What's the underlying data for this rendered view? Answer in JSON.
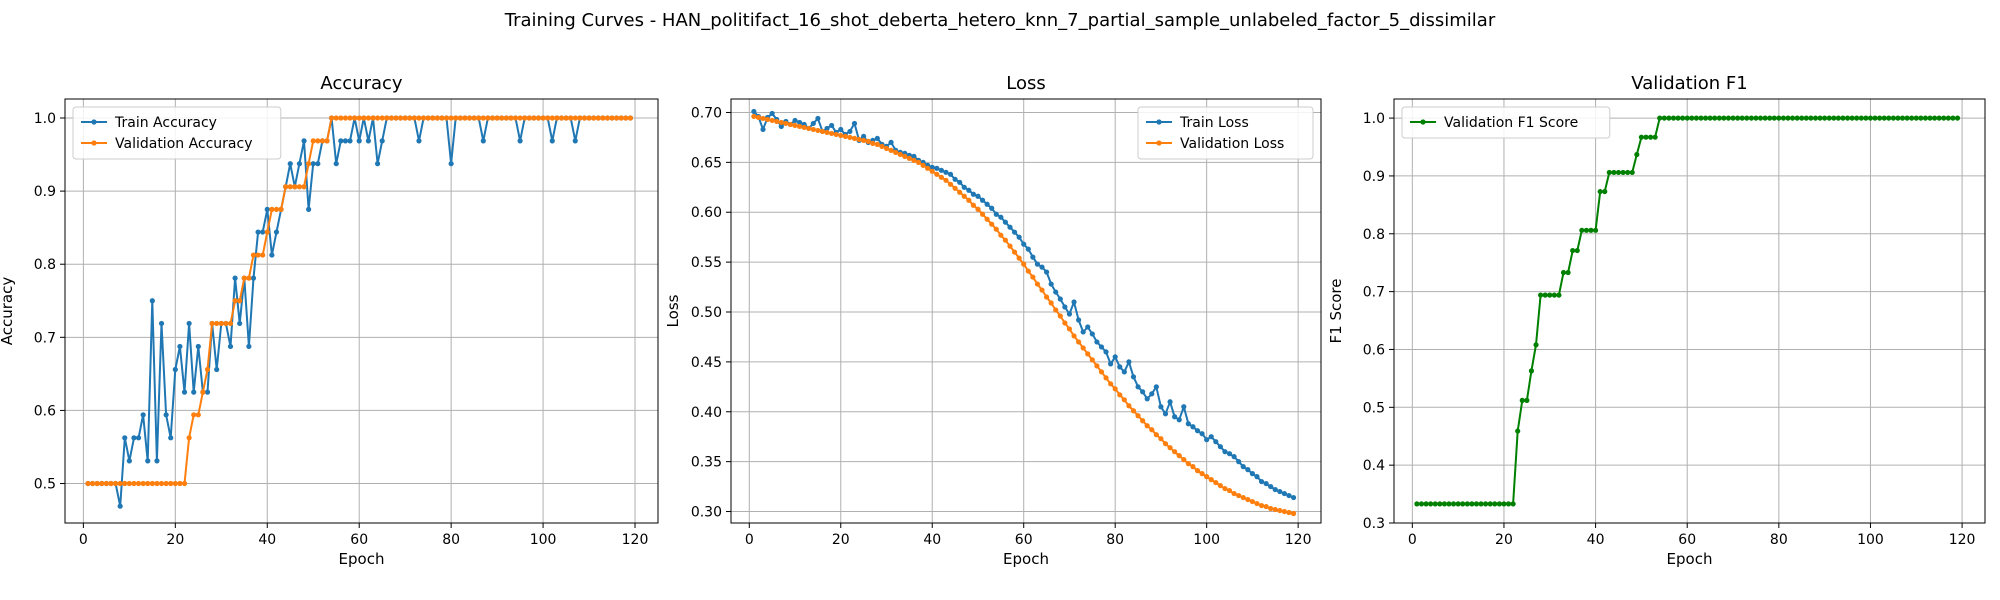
{
  "figure": {
    "suptitle": "Training Curves - HAN_politifact_16_shot_deberta_hetero_knn_7_partial_sample_unlabeled_factor_5_dissimilar"
  },
  "colors": {
    "train": "#1f77b4",
    "validation": "#ff7f0e",
    "f1": "#008000",
    "grid": "#b0b0b0"
  },
  "chart_data": [
    {
      "type": "line",
      "title": "Accuracy",
      "xlabel": "Epoch",
      "ylabel": "Accuracy",
      "xlim": [
        -4,
        125
      ],
      "ylim": [
        0.446,
        1.026
      ],
      "xticks": [
        0,
        20,
        40,
        60,
        80,
        100,
        120
      ],
      "yticks": [
        0.5,
        0.6,
        0.7,
        0.8,
        0.9,
        1.0
      ],
      "ytick_labels": [
        "0.5",
        "0.6",
        "0.7",
        "0.8",
        "0.9",
        "1.0"
      ],
      "grid": true,
      "legend_position": "top-left",
      "x": [
        1,
        2,
        3,
        4,
        5,
        6,
        7,
        8,
        9,
        10,
        11,
        12,
        13,
        14,
        15,
        16,
        17,
        18,
        19,
        20,
        21,
        22,
        23,
        24,
        25,
        26,
        27,
        28,
        29,
        30,
        31,
        32,
        33,
        34,
        35,
        36,
        37,
        38,
        39,
        40,
        41,
        42,
        43,
        44,
        45,
        46,
        47,
        48,
        49,
        50,
        51,
        52,
        53,
        54,
        55,
        56,
        57,
        58,
        59,
        60,
        61,
        62,
        63,
        64,
        65,
        66,
        67,
        68,
        69,
        70,
        71,
        72,
        73,
        74,
        75,
        76,
        77,
        78,
        79,
        80,
        81,
        82,
        83,
        84,
        85,
        86,
        87,
        88,
        89,
        90,
        91,
        92,
        93,
        94,
        95,
        96,
        97,
        98,
        99,
        100,
        101,
        102,
        103,
        104,
        105,
        106,
        107,
        108,
        109,
        110,
        111,
        112,
        113,
        114,
        115,
        116,
        117,
        118,
        119
      ],
      "series": [
        {
          "name": "Train Accuracy",
          "color": "#1f77b4",
          "values": [
            0.5,
            0.5,
            0.5,
            0.5,
            0.5,
            0.5,
            0.5,
            0.469,
            0.5625,
            0.531,
            0.5625,
            0.5625,
            0.594,
            0.531,
            0.75,
            0.531,
            0.719,
            0.594,
            0.5625,
            0.656,
            0.6875,
            0.625,
            0.719,
            0.625,
            0.6875,
            0.625,
            0.625,
            0.719,
            0.656,
            0.719,
            0.719,
            0.6875,
            0.781,
            0.719,
            0.781,
            0.6875,
            0.781,
            0.844,
            0.844,
            0.875,
            0.8125,
            0.844,
            0.875,
            0.906,
            0.9375,
            0.906,
            0.9375,
            0.96875,
            0.875,
            0.9375,
            0.9375,
            0.96875,
            0.96875,
            1.0,
            0.9375,
            0.96875,
            0.96875,
            0.96875,
            1.0,
            0.96875,
            1.0,
            0.96875,
            1.0,
            0.9375,
            0.96875,
            1.0,
            1.0,
            1.0,
            1.0,
            1.0,
            1.0,
            1.0,
            0.96875,
            1.0,
            1.0,
            1.0,
            1.0,
            1.0,
            1.0,
            0.9375,
            1.0,
            1.0,
            1.0,
            1.0,
            1.0,
            1.0,
            0.96875,
            1.0,
            1.0,
            1.0,
            1.0,
            1.0,
            1.0,
            1.0,
            0.96875,
            1.0,
            1.0,
            1.0,
            1.0,
            1.0,
            1.0,
            0.96875,
            1.0,
            1.0,
            1.0,
            1.0,
            0.96875,
            1.0,
            1.0,
            1.0,
            1.0,
            1.0,
            1.0,
            1.0,
            1.0,
            1.0,
            1.0,
            1.0,
            1.0
          ]
        },
        {
          "name": "Validation Accuracy",
          "color": "#ff7f0e",
          "values": [
            0.5,
            0.5,
            0.5,
            0.5,
            0.5,
            0.5,
            0.5,
            0.5,
            0.5,
            0.5,
            0.5,
            0.5,
            0.5,
            0.5,
            0.5,
            0.5,
            0.5,
            0.5,
            0.5,
            0.5,
            0.5,
            0.5,
            0.5625,
            0.594,
            0.594,
            0.625,
            0.656,
            0.719,
            0.719,
            0.719,
            0.719,
            0.719,
            0.75,
            0.75,
            0.781,
            0.781,
            0.8125,
            0.8125,
            0.8125,
            0.844,
            0.875,
            0.875,
            0.875,
            0.906,
            0.906,
            0.906,
            0.906,
            0.906,
            0.9375,
            0.96875,
            0.96875,
            0.96875,
            0.96875,
            1.0,
            1.0,
            1.0,
            1.0,
            1.0,
            1.0,
            1.0,
            1.0,
            1.0,
            1.0,
            1.0,
            1.0,
            1.0,
            1.0,
            1.0,
            1.0,
            1.0,
            1.0,
            1.0,
            1.0,
            1.0,
            1.0,
            1.0,
            1.0,
            1.0,
            1.0,
            1.0,
            1.0,
            1.0,
            1.0,
            1.0,
            1.0,
            1.0,
            1.0,
            1.0,
            1.0,
            1.0,
            1.0,
            1.0,
            1.0,
            1.0,
            1.0,
            1.0,
            1.0,
            1.0,
            1.0,
            1.0,
            1.0,
            1.0,
            1.0,
            1.0,
            1.0,
            1.0,
            1.0,
            1.0,
            1.0,
            1.0,
            1.0,
            1.0,
            1.0,
            1.0,
            1.0,
            1.0,
            1.0,
            1.0,
            1.0
          ]
        }
      ]
    },
    {
      "type": "line",
      "title": "Loss",
      "xlabel": "Epoch",
      "ylabel": "Loss",
      "xlim": [
        -4,
        125
      ],
      "ylim": [
        0.2885,
        0.7135
      ],
      "xticks": [
        0,
        20,
        40,
        60,
        80,
        100,
        120
      ],
      "yticks": [
        0.3,
        0.35,
        0.4,
        0.45,
        0.5,
        0.55,
        0.6,
        0.65,
        0.7
      ],
      "ytick_labels": [
        "0.30",
        "0.35",
        "0.40",
        "0.45",
        "0.50",
        "0.55",
        "0.60",
        "0.65",
        "0.70"
      ],
      "grid": true,
      "legend_position": "top-right",
      "x": [
        1,
        2,
        3,
        4,
        5,
        6,
        7,
        8,
        9,
        10,
        11,
        12,
        13,
        14,
        15,
        16,
        17,
        18,
        19,
        20,
        21,
        22,
        23,
        24,
        25,
        26,
        27,
        28,
        29,
        30,
        31,
        32,
        33,
        34,
        35,
        36,
        37,
        38,
        39,
        40,
        41,
        42,
        43,
        44,
        45,
        46,
        47,
        48,
        49,
        50,
        51,
        52,
        53,
        54,
        55,
        56,
        57,
        58,
        59,
        60,
        61,
        62,
        63,
        64,
        65,
        66,
        67,
        68,
        69,
        70,
        71,
        72,
        73,
        74,
        75,
        76,
        77,
        78,
        79,
        80,
        81,
        82,
        83,
        84,
        85,
        86,
        87,
        88,
        89,
        90,
        91,
        92,
        93,
        94,
        95,
        96,
        97,
        98,
        99,
        100,
        101,
        102,
        103,
        104,
        105,
        106,
        107,
        108,
        109,
        110,
        111,
        112,
        113,
        114,
        115,
        116,
        117,
        118,
        119
      ],
      "series": [
        {
          "name": "Train Loss",
          "color": "#1f77b4",
          "values": [
            0.701,
            0.696,
            0.683,
            0.695,
            0.699,
            0.693,
            0.686,
            0.691,
            0.688,
            0.692,
            0.69,
            0.688,
            0.684,
            0.689,
            0.694,
            0.681,
            0.684,
            0.687,
            0.68,
            0.683,
            0.678,
            0.681,
            0.689,
            0.672,
            0.676,
            0.67,
            0.672,
            0.674,
            0.668,
            0.666,
            0.67,
            0.662,
            0.66,
            0.659,
            0.657,
            0.656,
            0.652,
            0.65,
            0.647,
            0.645,
            0.644,
            0.642,
            0.64,
            0.638,
            0.633,
            0.63,
            0.625,
            0.622,
            0.618,
            0.616,
            0.612,
            0.608,
            0.604,
            0.598,
            0.595,
            0.59,
            0.585,
            0.58,
            0.575,
            0.568,
            0.563,
            0.555,
            0.548,
            0.545,
            0.54,
            0.528,
            0.52,
            0.513,
            0.505,
            0.498,
            0.51,
            0.492,
            0.48,
            0.485,
            0.478,
            0.47,
            0.465,
            0.46,
            0.448,
            0.455,
            0.445,
            0.44,
            0.45,
            0.435,
            0.425,
            0.42,
            0.413,
            0.418,
            0.425,
            0.405,
            0.398,
            0.41,
            0.395,
            0.392,
            0.405,
            0.388,
            0.385,
            0.381,
            0.378,
            0.372,
            0.375,
            0.37,
            0.365,
            0.36,
            0.358,
            0.355,
            0.35,
            0.345,
            0.342,
            0.338,
            0.335,
            0.33,
            0.328,
            0.325,
            0.322,
            0.32,
            0.318,
            0.316,
            0.314
          ]
        },
        {
          "name": "Validation Loss",
          "color": "#ff7f0e",
          "values": [
            0.696,
            0.695,
            0.694,
            0.693,
            0.692,
            0.691,
            0.69,
            0.689,
            0.688,
            0.687,
            0.686,
            0.685,
            0.684,
            0.683,
            0.682,
            0.681,
            0.68,
            0.679,
            0.678,
            0.677,
            0.676,
            0.675,
            0.674,
            0.673,
            0.672,
            0.671,
            0.669,
            0.668,
            0.666,
            0.664,
            0.662,
            0.66,
            0.658,
            0.656,
            0.654,
            0.652,
            0.65,
            0.647,
            0.644,
            0.641,
            0.638,
            0.635,
            0.632,
            0.628,
            0.624,
            0.62,
            0.616,
            0.612,
            0.607,
            0.603,
            0.598,
            0.593,
            0.588,
            0.583,
            0.577,
            0.572,
            0.566,
            0.56,
            0.554,
            0.548,
            0.541,
            0.535,
            0.528,
            0.522,
            0.515,
            0.509,
            0.502,
            0.496,
            0.489,
            0.483,
            0.476,
            0.47,
            0.464,
            0.458,
            0.452,
            0.446,
            0.44,
            0.434,
            0.428,
            0.423,
            0.417,
            0.412,
            0.406,
            0.401,
            0.396,
            0.391,
            0.386,
            0.382,
            0.377,
            0.373,
            0.368,
            0.364,
            0.36,
            0.356,
            0.352,
            0.348,
            0.345,
            0.341,
            0.338,
            0.335,
            0.332,
            0.329,
            0.326,
            0.323,
            0.321,
            0.318,
            0.316,
            0.314,
            0.312,
            0.31,
            0.308,
            0.306,
            0.305,
            0.303,
            0.302,
            0.301,
            0.3,
            0.299,
            0.298
          ]
        }
      ]
    },
    {
      "type": "line",
      "title": "Validation F1",
      "xlabel": "Epoch",
      "ylabel": "F1 Score",
      "xlim": [
        -4,
        125
      ],
      "ylim": [
        0.3,
        1.033
      ],
      "xticks": [
        0,
        20,
        40,
        60,
        80,
        100,
        120
      ],
      "yticks": [
        0.3,
        0.4,
        0.5,
        0.6,
        0.7,
        0.8,
        0.9,
        1.0
      ],
      "ytick_labels": [
        "0.3",
        "0.4",
        "0.5",
        "0.6",
        "0.7",
        "0.8",
        "0.9",
        "1.0"
      ],
      "grid": true,
      "legend_position": "top-left",
      "x": [
        1,
        2,
        3,
        4,
        5,
        6,
        7,
        8,
        9,
        10,
        11,
        12,
        13,
        14,
        15,
        16,
        17,
        18,
        19,
        20,
        21,
        22,
        23,
        24,
        25,
        26,
        27,
        28,
        29,
        30,
        31,
        32,
        33,
        34,
        35,
        36,
        37,
        38,
        39,
        40,
        41,
        42,
        43,
        44,
        45,
        46,
        47,
        48,
        49,
        50,
        51,
        52,
        53,
        54,
        55,
        56,
        57,
        58,
        59,
        60,
        61,
        62,
        63,
        64,
        65,
        66,
        67,
        68,
        69,
        70,
        71,
        72,
        73,
        74,
        75,
        76,
        77,
        78,
        79,
        80,
        81,
        82,
        83,
        84,
        85,
        86,
        87,
        88,
        89,
        90,
        91,
        92,
        93,
        94,
        95,
        96,
        97,
        98,
        99,
        100,
        101,
        102,
        103,
        104,
        105,
        106,
        107,
        108,
        109,
        110,
        111,
        112,
        113,
        114,
        115,
        116,
        117,
        118,
        119
      ],
      "series": [
        {
          "name": "Validation F1 Score",
          "color": "#008000",
          "values": [
            0.333,
            0.333,
            0.333,
            0.333,
            0.333,
            0.333,
            0.333,
            0.333,
            0.333,
            0.333,
            0.333,
            0.333,
            0.333,
            0.333,
            0.333,
            0.333,
            0.333,
            0.333,
            0.333,
            0.333,
            0.333,
            0.333,
            0.459,
            0.512,
            0.512,
            0.563,
            0.608,
            0.694,
            0.694,
            0.694,
            0.694,
            0.694,
            0.733,
            0.733,
            0.771,
            0.771,
            0.806,
            0.806,
            0.806,
            0.806,
            0.873,
            0.873,
            0.906,
            0.906,
            0.906,
            0.906,
            0.906,
            0.906,
            0.937,
            0.967,
            0.967,
            0.967,
            0.967,
            1.0,
            1.0,
            1.0,
            1.0,
            1.0,
            1.0,
            1.0,
            1.0,
            1.0,
            1.0,
            1.0,
            1.0,
            1.0,
            1.0,
            1.0,
            1.0,
            1.0,
            1.0,
            1.0,
            1.0,
            1.0,
            1.0,
            1.0,
            1.0,
            1.0,
            1.0,
            1.0,
            1.0,
            1.0,
            1.0,
            1.0,
            1.0,
            1.0,
            1.0,
            1.0,
            1.0,
            1.0,
            1.0,
            1.0,
            1.0,
            1.0,
            1.0,
            1.0,
            1.0,
            1.0,
            1.0,
            1.0,
            1.0,
            1.0,
            1.0,
            1.0,
            1.0,
            1.0,
            1.0,
            1.0,
            1.0,
            1.0,
            1.0,
            1.0,
            1.0,
            1.0,
            1.0,
            1.0,
            1.0,
            1.0,
            1.0
          ]
        }
      ]
    }
  ]
}
